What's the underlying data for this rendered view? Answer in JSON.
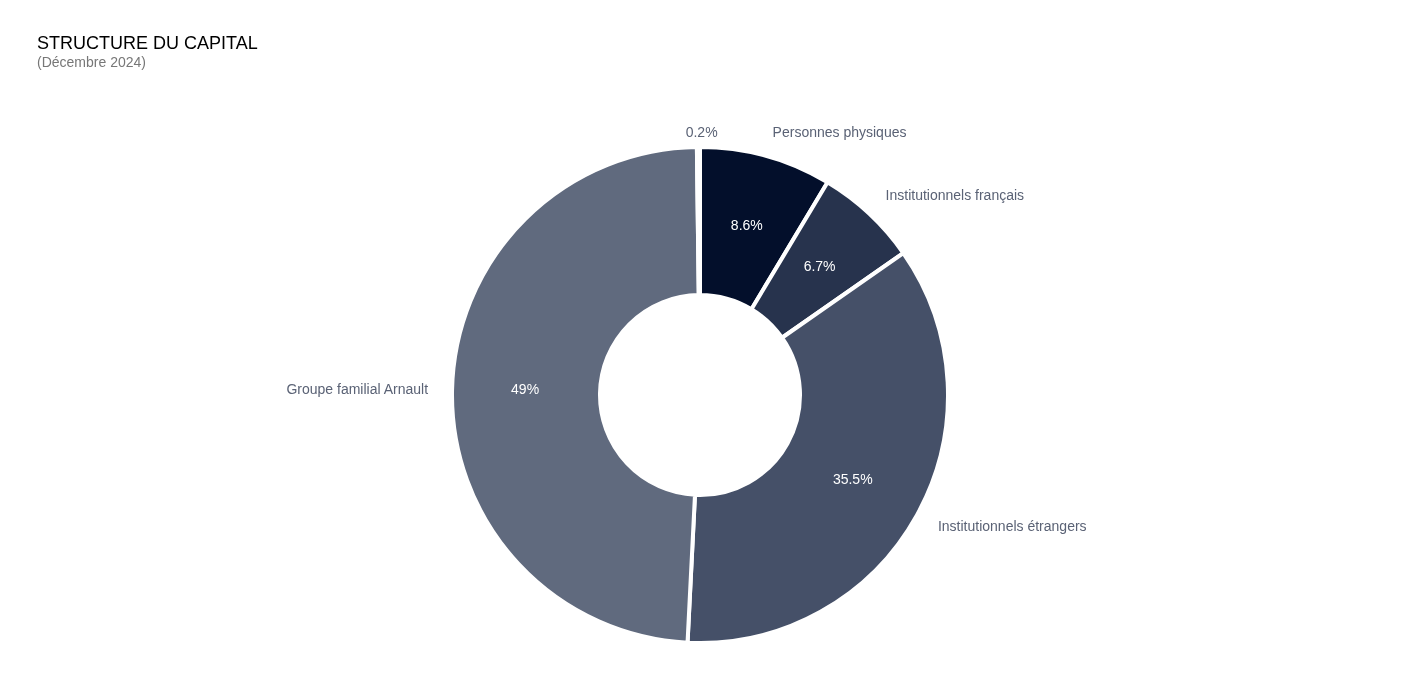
{
  "chart_data": {
    "type": "donut",
    "title": "STRUCTURE DU CAPITAL",
    "subtitle": "(Décembre 2024)",
    "categories": [
      "Personnes physiques",
      "Institutionnels français",
      "Institutionnels étrangers",
      "Groupe familial Arnault",
      null
    ],
    "values": [
      8.6,
      6.7,
      35.5,
      49,
      0.2
    ],
    "colors": [
      "#030f2b",
      "#27334d",
      "#455068",
      "#606a7e",
      "#8a93a3"
    ],
    "value_labels": [
      "8.6%",
      "6.7%",
      "35.5%",
      "49%",
      "0.2%"
    ],
    "legend": false
  }
}
